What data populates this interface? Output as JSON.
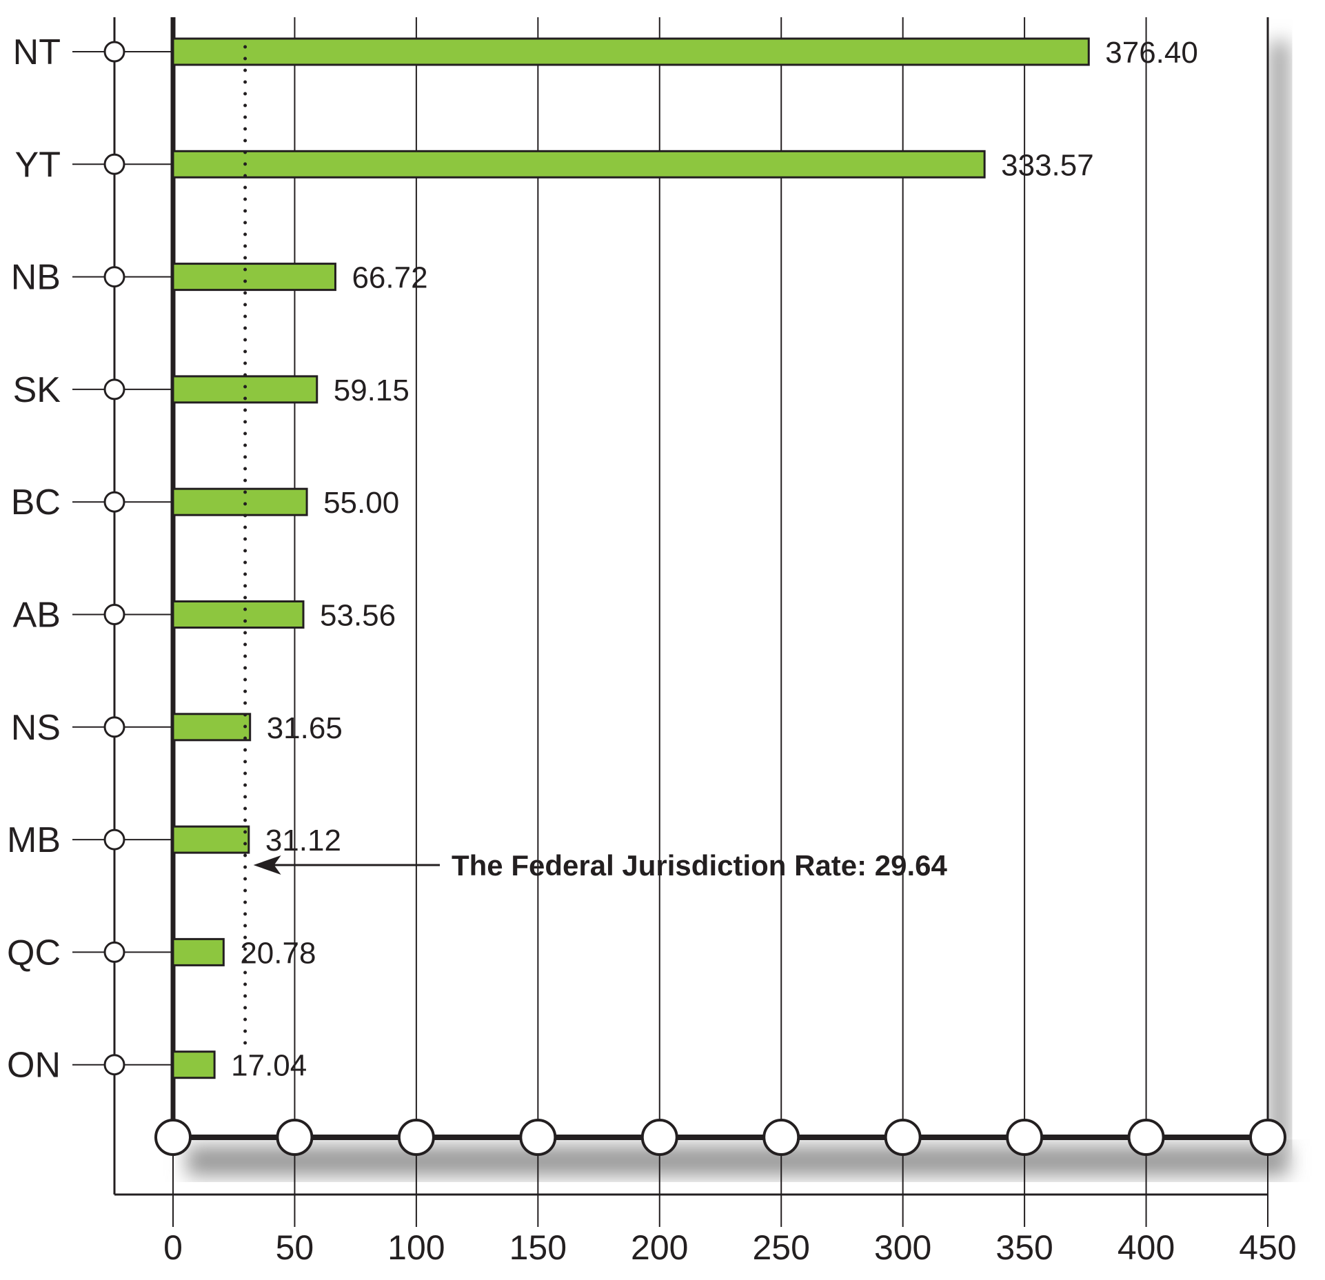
{
  "chart_data": {
    "type": "bar",
    "orientation": "horizontal",
    "categories": [
      "NT",
      "YT",
      "NB",
      "SK",
      "BC",
      "AB",
      "NS",
      "MB",
      "QC",
      "ON"
    ],
    "values": [
      376.4,
      333.57,
      66.72,
      59.15,
      55.0,
      53.56,
      31.65,
      31.12,
      20.78,
      17.04
    ],
    "value_labels": [
      "376.40",
      "333.57",
      "66.72",
      "59.15",
      "55.00",
      "53.56",
      "31.65",
      "31.12",
      "20.78",
      "17.04"
    ],
    "xlim": [
      0,
      450
    ],
    "x_ticks": [
      "0",
      "50",
      "100",
      "150",
      "200",
      "250",
      "300",
      "350",
      "400",
      "450"
    ],
    "grid": true,
    "reference_line": {
      "value": 29.64,
      "label": "The Federal Jurisdiction Rate: 29.64",
      "style": "dotted"
    },
    "title": "",
    "xlabel": "",
    "ylabel": "",
    "colors": {
      "bar_fill": "#8dc63f",
      "outline": "#231f20",
      "grid": "#231f20",
      "shadow": "#9a9a9a"
    }
  }
}
